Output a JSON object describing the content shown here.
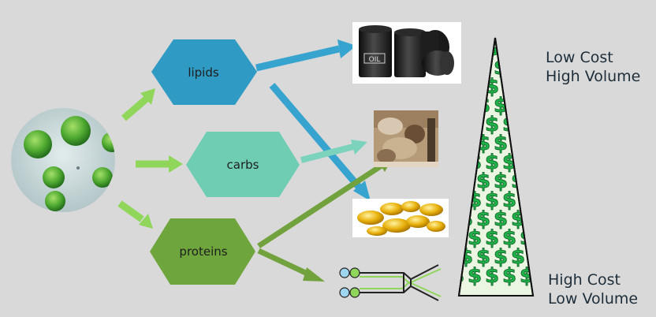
{
  "nodes": {
    "lipids": "lipids",
    "carbs": "carbs",
    "proteins": "proteins"
  },
  "scale_labels": {
    "top_line1": "Low Cost",
    "top_line2": "High Volume",
    "bottom_line1": "High Cost",
    "bottom_line2": "Low Volume"
  },
  "pictures": {
    "oil_barrel_label": "OIL",
    "pyramid_symbol": "$"
  },
  "colors": {
    "background": "#d9d9d9",
    "lipids": "#2f9ac4",
    "carbs": "#6fcdb4",
    "proteins": "#6ea53c",
    "arrow_green": "#8fd65a",
    "arrow_blue": "#36a4cf",
    "arrow_teal": "#7bd3bd",
    "arrow_dark_green": "#72a23d",
    "dollar": "#1fb34a"
  }
}
